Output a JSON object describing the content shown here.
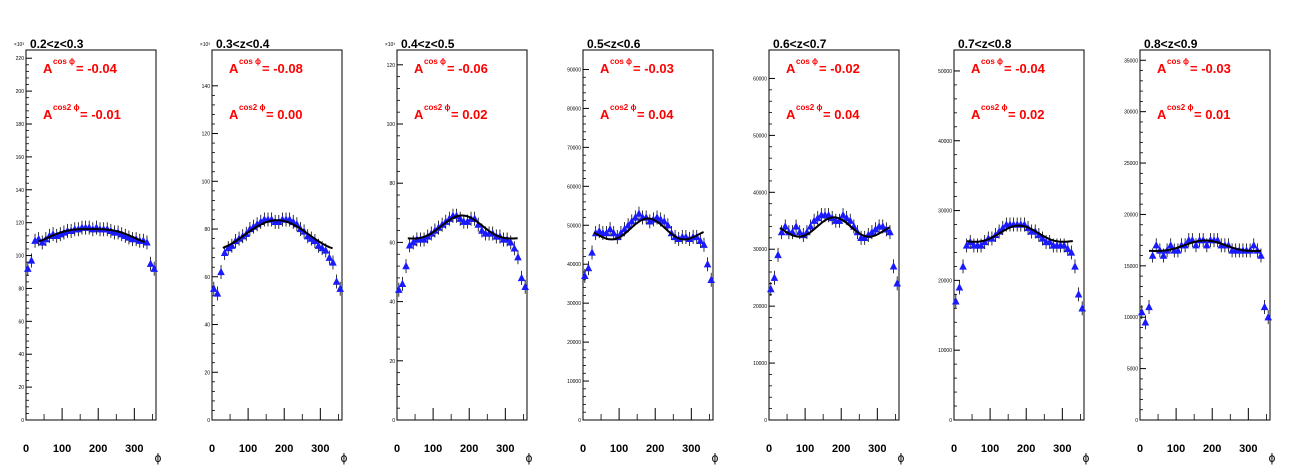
{
  "figure": {
    "x_axis_label": "ϕ",
    "asym_label": "A",
    "cos_sup": "cos ϕ",
    "cos2_sup": "cos2 ϕ"
  },
  "colors": {
    "marker": "#1a1aff",
    "fit": "#000000",
    "asym_text": "#ff0000",
    "axis": "#000000"
  },
  "chart_data": [
    {
      "type": "scatter",
      "title": "0.2<z<0.3",
      "exponent_label": "×10³",
      "xlim": [
        0,
        360
      ],
      "ylim": [
        0,
        225
      ],
      "x_ticks": [
        0,
        100,
        200,
        300
      ],
      "y_ticks": [
        0,
        20,
        40,
        60,
        80,
        100,
        120,
        140,
        160,
        180,
        200,
        220
      ],
      "y_tick_labels": [
        "0",
        "20",
        "40",
        "60",
        "80",
        "100",
        "120",
        "140",
        "160",
        "180",
        "200",
        "220"
      ],
      "A_cos": "= -0.04",
      "A_cos2": "= -0.01",
      "fit_range": [
        35,
        330
      ],
      "x": [
        5,
        15,
        25,
        35,
        45,
        55,
        65,
        75,
        85,
        95,
        105,
        115,
        125,
        135,
        145,
        155,
        165,
        175,
        185,
        195,
        205,
        215,
        225,
        235,
        245,
        255,
        265,
        275,
        285,
        295,
        305,
        315,
        325,
        335,
        345,
        355
      ],
      "y": [
        92,
        97,
        109,
        110,
        108,
        110,
        112,
        113,
        112,
        113,
        114,
        115,
        115,
        116,
        116,
        117,
        117,
        117,
        116,
        117,
        116,
        116,
        116,
        115,
        114,
        114,
        113,
        112,
        111,
        110,
        110,
        109,
        109,
        108,
        95,
        92
      ],
      "fit": {
        "a0": 112.6,
        "a1": -4.5,
        "a2": -1.0
      }
    },
    {
      "type": "scatter",
      "title": "0.3<z<0.4",
      "exponent_label": "×10³",
      "xlim": [
        0,
        360
      ],
      "ylim": [
        0,
        155
      ],
      "x_ticks": [
        0,
        100,
        200,
        300
      ],
      "y_ticks": [
        0,
        20,
        40,
        60,
        80,
        100,
        120,
        140
      ],
      "y_tick_labels": [
        "0",
        "20",
        "40",
        "60",
        "80",
        "100",
        "120",
        "140"
      ],
      "A_cos": "= -0.08",
      "A_cos2": "= 0.00",
      "fit_range": [
        30,
        335
      ],
      "x": [
        5,
        15,
        25,
        35,
        45,
        55,
        65,
        75,
        85,
        95,
        105,
        115,
        125,
        135,
        145,
        155,
        165,
        175,
        185,
        195,
        205,
        215,
        225,
        235,
        245,
        255,
        265,
        275,
        285,
        295,
        305,
        315,
        325,
        335,
        345,
        355
      ],
      "y": [
        55,
        53,
        62,
        70,
        72,
        73,
        75,
        76,
        77,
        78,
        80,
        81,
        82,
        83,
        84,
        84,
        84,
        83,
        83,
        84,
        84,
        84,
        83,
        82,
        80,
        79,
        77,
        76,
        75,
        73,
        72,
        71,
        68,
        66,
        58,
        55
      ],
      "fit": {
        "a0": 77.5,
        "a1": -6.2,
        "a2": 0.0
      }
    },
    {
      "type": "scatter",
      "title": "0.4<z<0.5",
      "exponent_label": "×10³",
      "xlim": [
        0,
        360
      ],
      "ylim": [
        0,
        125
      ],
      "x_ticks": [
        0,
        100,
        200,
        300
      ],
      "y_ticks": [
        0,
        20,
        40,
        60,
        80,
        100,
        120
      ],
      "y_tick_labels": [
        "0",
        "20",
        "40",
        "60",
        "80",
        "100",
        "120"
      ],
      "A_cos": "= -0.06",
      "A_cos2": "= 0.02",
      "fit_range": [
        30,
        335
      ],
      "x": [
        5,
        15,
        25,
        35,
        45,
        55,
        65,
        75,
        85,
        95,
        105,
        115,
        125,
        135,
        145,
        155,
        165,
        175,
        185,
        195,
        205,
        215,
        225,
        235,
        245,
        255,
        265,
        275,
        285,
        295,
        305,
        315,
        325,
        335,
        345,
        355
      ],
      "y": [
        44,
        46,
        52,
        59,
        60,
        61,
        61,
        61,
        62,
        63,
        64,
        65,
        66,
        67,
        68,
        69,
        69,
        68,
        67,
        67,
        68,
        68,
        66,
        64,
        63,
        63,
        63,
        62,
        62,
        61,
        61,
        60,
        58,
        55,
        48,
        45
      ],
      "fit": {
        "a0": 64.0,
        "a1": -3.8,
        "a2": 1.3
      }
    },
    {
      "type": "scatter",
      "title": "0.5<z<0.6",
      "exponent_label": "",
      "xlim": [
        0,
        360
      ],
      "ylim": [
        0,
        95000
      ],
      "x_ticks": [
        0,
        100,
        200,
        300
      ],
      "y_ticks": [
        0,
        10000,
        20000,
        30000,
        40000,
        50000,
        60000,
        70000,
        80000,
        90000
      ],
      "y_tick_labels": [
        "0",
        "10000",
        "20000",
        "30000",
        "40000",
        "50000",
        "60000",
        "70000",
        "80000",
        "90000"
      ],
      "A_cos": "= -0.03",
      "A_cos2": "= 0.04",
      "fit_range": [
        30,
        335
      ],
      "x": [
        5,
        15,
        25,
        35,
        45,
        55,
        65,
        75,
        85,
        95,
        105,
        115,
        125,
        135,
        145,
        155,
        165,
        175,
        185,
        195,
        205,
        215,
        225,
        235,
        245,
        255,
        265,
        275,
        285,
        295,
        305,
        315,
        325,
        335,
        345,
        355
      ],
      "y": [
        37000,
        39000,
        43000,
        48000,
        48500,
        48000,
        48000,
        49000,
        48000,
        47000,
        48000,
        49000,
        50000,
        51000,
        52000,
        53000,
        52000,
        52000,
        51000,
        51500,
        52000,
        51500,
        51000,
        50000,
        48000,
        47000,
        46500,
        47000,
        47000,
        46500,
        47000,
        47000,
        46000,
        45000,
        40000,
        36000
      ],
      "fit": {
        "a0": 48400,
        "a1": -1450,
        "a2": 1900
      }
    },
    {
      "type": "scatter",
      "title": "0.6<z<0.7",
      "exponent_label": "",
      "xlim": [
        0,
        360
      ],
      "ylim": [
        0,
        65000
      ],
      "x_ticks": [
        0,
        100,
        200,
        300
      ],
      "y_ticks": [
        0,
        10000,
        20000,
        30000,
        40000,
        50000,
        60000
      ],
      "y_tick_labels": [
        "0",
        "10000",
        "20000",
        "30000",
        "40000",
        "50000",
        "60000"
      ],
      "A_cos": "= -0.02",
      "A_cos2": "= 0.04",
      "fit_range": [
        30,
        335
      ],
      "x": [
        5,
        15,
        25,
        35,
        45,
        55,
        65,
        75,
        85,
        95,
        105,
        115,
        125,
        135,
        145,
        155,
        165,
        175,
        185,
        195,
        205,
        215,
        225,
        235,
        245,
        255,
        265,
        275,
        285,
        295,
        305,
        315,
        325,
        335,
        345,
        355
      ],
      "y": [
        23000,
        25000,
        29000,
        33000,
        34000,
        33000,
        33000,
        34000,
        33000,
        32500,
        33000,
        34000,
        35000,
        35500,
        36000,
        36000,
        36000,
        35500,
        35000,
        35000,
        36000,
        35500,
        35000,
        34000,
        33000,
        32000,
        32000,
        32500,
        33000,
        33500,
        34000,
        34000,
        33500,
        33000,
        27000,
        24000
      ],
      "fit": {
        "a0": 33600,
        "a1": -650,
        "a2": 1350
      }
    },
    {
      "type": "scatter",
      "title": "0.7<z<0.8",
      "exponent_label": "",
      "xlim": [
        0,
        360
      ],
      "ylim": [
        0,
        53000
      ],
      "x_ticks": [
        0,
        100,
        200,
        300
      ],
      "y_ticks": [
        0,
        10000,
        20000,
        30000,
        40000,
        50000
      ],
      "y_tick_labels": [
        "0",
        "10000",
        "20000",
        "30000",
        "40000",
        "50000"
      ],
      "A_cos": "= -0.04",
      "A_cos2": "= 0.02",
      "fit_range": [
        35,
        330
      ],
      "x": [
        5,
        15,
        25,
        35,
        45,
        55,
        65,
        75,
        85,
        95,
        105,
        115,
        125,
        135,
        145,
        155,
        165,
        175,
        185,
        195,
        205,
        215,
        225,
        235,
        245,
        255,
        265,
        275,
        285,
        295,
        305,
        315,
        325,
        335,
        345,
        355
      ],
      "y": [
        17000,
        19000,
        22000,
        25000,
        25500,
        25000,
        25000,
        25000,
        25500,
        26000,
        26000,
        26500,
        27000,
        27500,
        28000,
        28000,
        28000,
        28000,
        28000,
        28000,
        27500,
        27000,
        27000,
        26500,
        26000,
        25500,
        25500,
        25000,
        25000,
        25000,
        25000,
        24500,
        24000,
        22000,
        18000,
        16000
      ],
      "fit": {
        "a0": 26300,
        "a1": -1050,
        "a2": 500
      }
    },
    {
      "type": "scatter",
      "title": "0.8<z<0.9",
      "exponent_label": "",
      "xlim": [
        0,
        360
      ],
      "ylim": [
        0,
        36000
      ],
      "x_ticks": [
        0,
        100,
        200,
        300
      ],
      "y_ticks": [
        0,
        5000,
        10000,
        15000,
        20000,
        25000,
        30000,
        35000
      ],
      "y_tick_labels": [
        "0",
        "5000",
        "10000",
        "15000",
        "20000",
        "25000",
        "30000",
        "35000"
      ],
      "A_cos": "= -0.03",
      "A_cos2": "= 0.01",
      "fit_range": [
        25,
        335
      ],
      "x": [
        5,
        15,
        25,
        35,
        45,
        55,
        65,
        75,
        85,
        95,
        105,
        115,
        125,
        135,
        145,
        155,
        165,
        175,
        185,
        195,
        205,
        215,
        225,
        235,
        245,
        255,
        265,
        275,
        285,
        295,
        305,
        315,
        325,
        335,
        345,
        355
      ],
      "y": [
        10500,
        9500,
        11000,
        16000,
        17000,
        16500,
        16000,
        16500,
        17000,
        16500,
        16500,
        17000,
        17000,
        17500,
        17500,
        17000,
        17500,
        17500,
        17000,
        17500,
        17500,
        17500,
        17000,
        17000,
        17000,
        16500,
        16500,
        16500,
        16500,
        16500,
        16500,
        17000,
        16500,
        16000,
        11000,
        10000
      ],
      "fit": {
        "a0": 16800,
        "a1": -500,
        "a2": 170
      }
    }
  ]
}
